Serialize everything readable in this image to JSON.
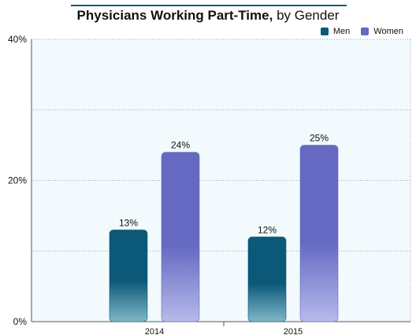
{
  "title": "Physicians Working Part-Time,",
  "subtitle": "by Gender",
  "colors": {
    "men_top": "#0b5878",
    "men_bottom": "#7fb8c8",
    "women_top": "#6569c2",
    "women_bottom": "#b6baea",
    "title_rule": "#0d5c7a",
    "plot_bg": "#f2fafd",
    "grid": "#9aa6b0"
  },
  "chart_data": {
    "type": "bar",
    "categories": [
      "2014",
      "2015"
    ],
    "series": [
      {
        "name": "Men",
        "values": [
          13,
          12
        ],
        "labels": [
          "13%",
          "12%"
        ]
      },
      {
        "name": "Women",
        "values": [
          24,
          25
        ],
        "labels": [
          "24%",
          "25%"
        ]
      }
    ],
    "ylim": [
      0,
      40
    ],
    "yticks": [
      0,
      20,
      40
    ],
    "ytick_labels": [
      "0%",
      "20%",
      "40%"
    ],
    "gridlines": [
      10,
      20,
      30,
      40
    ],
    "grid": true,
    "legend": "top-right",
    "xlabel": "",
    "ylabel": ""
  }
}
